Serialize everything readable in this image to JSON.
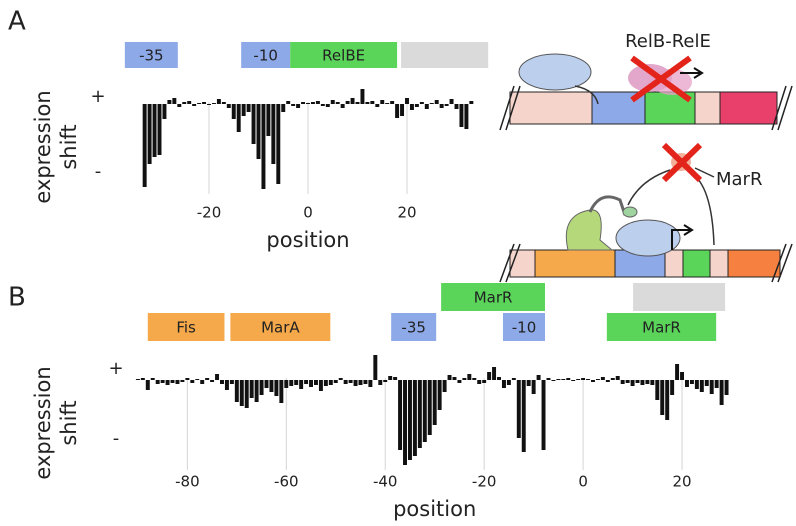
{
  "chart_data": [
    {
      "type": "bar",
      "panel": "A",
      "xlabel": "position",
      "ylabel_lines": [
        "expression",
        "shift"
      ],
      "color": "#111111",
      "xlim": [
        -40,
        40
      ],
      "ylim": [
        -9,
        2
      ],
      "xticks": [
        -20,
        0,
        20
      ],
      "yticks": [
        {
          "value": 0.7,
          "label": "+"
        },
        {
          "value": -6.8,
          "label": "-"
        }
      ],
      "grid": true,
      "x": [
        -33,
        -32,
        -31,
        -30,
        -29,
        -28,
        -27,
        -26,
        -25,
        -24,
        -23,
        -22,
        -21,
        -20,
        -19,
        -18,
        -17,
        -16,
        -15,
        -14,
        -13,
        -12,
        -11,
        -10,
        -9,
        -8,
        -7,
        -6,
        -5,
        -4,
        -3,
        -2,
        -1,
        0,
        1,
        2,
        3,
        4,
        5,
        6,
        7,
        8,
        9,
        10,
        11,
        12,
        13,
        14,
        15,
        16,
        17,
        18,
        19,
        20,
        21,
        22,
        23,
        24,
        25,
        26,
        27,
        28,
        29,
        30,
        31,
        32,
        33
      ],
      "values": [
        -8.3,
        -6.0,
        -5.3,
        -5.1,
        -1.5,
        0.4,
        0.6,
        -0.3,
        0.2,
        0.3,
        -0.2,
        0.1,
        0.2,
        -0.1,
        0.1,
        0.5,
        0.2,
        -0.4,
        -1.5,
        -2.8,
        -1.2,
        -0.8,
        -4.0,
        -5.5,
        -8.5,
        -3.2,
        -6.0,
        -8.0,
        -0.8,
        0.3,
        -0.2,
        -0.4,
        0.2,
        0.1,
        0.2,
        0.3,
        -0.2,
        -0.3,
        0.4,
        0.2,
        -0.4,
        0.3,
        0.6,
        0.2,
        1.5,
        0.2,
        0.3,
        -0.3,
        0.4,
        0.1,
        0.3,
        -1.4,
        -1.2,
        0.6,
        -0.6,
        -0.3,
        0.2,
        -0.5,
        0.1,
        0.4,
        -0.4,
        -0.2,
        0.5,
        -0.5,
        -2.3,
        -2.5,
        0.3
      ],
      "regions": [
        {
          "label": "-35",
          "color": "#8ea9e8",
          "start": -37,
          "end": -26.3
        },
        {
          "label": "-10",
          "color": "#8ea9e8",
          "start": -13.5,
          "end": -3.6
        },
        {
          "label": "RelBE",
          "color": "#5ad55a",
          "start": -3.6,
          "end": 18
        },
        {
          "color": "#d9dad9",
          "start": 18.8,
          "end": 36.4
        }
      ]
    },
    {
      "type": "bar",
      "panel": "B",
      "xlabel": "position",
      "ylabel_lines": [
        "expression",
        "shift"
      ],
      "color": "#111111",
      "xlim": [
        -92,
        30
      ],
      "ylim": [
        -9,
        2
      ],
      "xticks": [
        -80,
        -60,
        -40,
        -20,
        0,
        20
      ],
      "yticks": [
        {
          "value": 1.1,
          "label": "+"
        },
        {
          "value": -5.9,
          "label": "-"
        }
      ],
      "grid": true,
      "x": [
        -90,
        -89,
        -88,
        -87,
        -86,
        -85,
        -84,
        -83,
        -82,
        -81,
        -80,
        -79,
        -78,
        -77,
        -76,
        -75,
        -74,
        -73,
        -72,
        -71,
        -70,
        -69,
        -68,
        -67,
        -66,
        -65,
        -64,
        -63,
        -62,
        -61,
        -60,
        -59,
        -58,
        -57,
        -56,
        -55,
        -54,
        -53,
        -52,
        -51,
        -50,
        -49,
        -48,
        -47,
        -46,
        -45,
        -44,
        -43,
        -42,
        -41,
        -40,
        -39,
        -38,
        -37,
        -36,
        -35,
        -34,
        -33,
        -32,
        -31,
        -30,
        -29,
        -28,
        -27,
        -26,
        -25,
        -24,
        -23,
        -22,
        -21,
        -20,
        -19,
        -18,
        -17,
        -16,
        -15,
        -14,
        -13,
        -12,
        -11,
        -10,
        -9,
        -8,
        -7,
        -6,
        -5,
        -4,
        -3,
        -2,
        -1,
        0,
        1,
        2,
        3,
        4,
        5,
        6,
        7,
        8,
        9,
        10,
        11,
        12,
        13,
        14,
        15,
        16,
        17,
        18,
        19,
        20,
        21,
        22,
        23,
        24,
        25,
        26,
        27,
        28,
        29
      ],
      "values": [
        0.1,
        0.2,
        -1.0,
        0.2,
        -0.4,
        -0.3,
        -0.5,
        -0.3,
        -0.4,
        -0.2,
        0.2,
        -0.3,
        0.1,
        -0.4,
        0.2,
        -0.2,
        0.6,
        -0.4,
        -1.0,
        -0.4,
        -2.2,
        -2.6,
        -2.8,
        -1.8,
        -2.2,
        -1.5,
        -0.8,
        -1.2,
        -1.6,
        -2.3,
        -0.8,
        -0.6,
        -0.5,
        -0.9,
        -0.4,
        -0.7,
        -0.5,
        -1.1,
        -0.6,
        -0.5,
        -0.3,
        0.2,
        -0.4,
        -0.3,
        -0.6,
        -0.5,
        -0.4,
        -0.7,
        2.5,
        -0.5,
        -0.2,
        0.4,
        0.3,
        -7.0,
        -8.5,
        -8.0,
        -7.6,
        -6.8,
        -6.2,
        -5.5,
        -4.5,
        -3.0,
        -1.2,
        0.5,
        0.3,
        -0.3,
        0.2,
        0.6,
        0.2,
        -0.4,
        -0.3,
        0.8,
        1.3,
        0.3,
        -0.8,
        -0.5,
        0.2,
        -5.8,
        -7.2,
        -0.6,
        -1.4,
        0.5,
        -7.0,
        0.2,
        -0.1,
        0.1,
        0.1,
        0.2,
        -0.1,
        0.1,
        0.2,
        0.1,
        -0.2,
        0.1,
        0.3,
        -0.2,
        0.2,
        0.4,
        -0.4,
        -0.3,
        -0.6,
        -0.3,
        -0.5,
        -0.4,
        -0.5,
        -2.0,
        -3.5,
        -4.0,
        -1.5,
        1.6,
        0.8,
        -0.7,
        -0.4,
        -0.9,
        -1.2,
        -0.6,
        -1.4,
        -0.8,
        -2.5,
        -1.5
      ],
      "regions": [
        {
          "label": "Fis",
          "color": "#f5a94a",
          "start": -88,
          "end": -72.5
        },
        {
          "label": "MarA",
          "color": "#f5a94a",
          "start": -71.3,
          "end": -51.1
        },
        {
          "label": "-35",
          "color": "#8ea9e8",
          "start": -38.8,
          "end": -29.7
        },
        {
          "label": "-10",
          "color": "#8ea9e8",
          "start": -16.2,
          "end": -7.7
        },
        {
          "label": "MarR",
          "color": "#5ad55a",
          "start": 4.8,
          "end": 26.9
        },
        {
          "label": "MarR",
          "color": "#5ad55a",
          "start": -28.7,
          "end": -7.7
        },
        {
          "color": "#d9dad9",
          "start": 10.1,
          "end": 28.7
        }
      ]
    }
  ],
  "diagram": {
    "labels": [
      "RelB-RelE",
      "MarR"
    ]
  }
}
